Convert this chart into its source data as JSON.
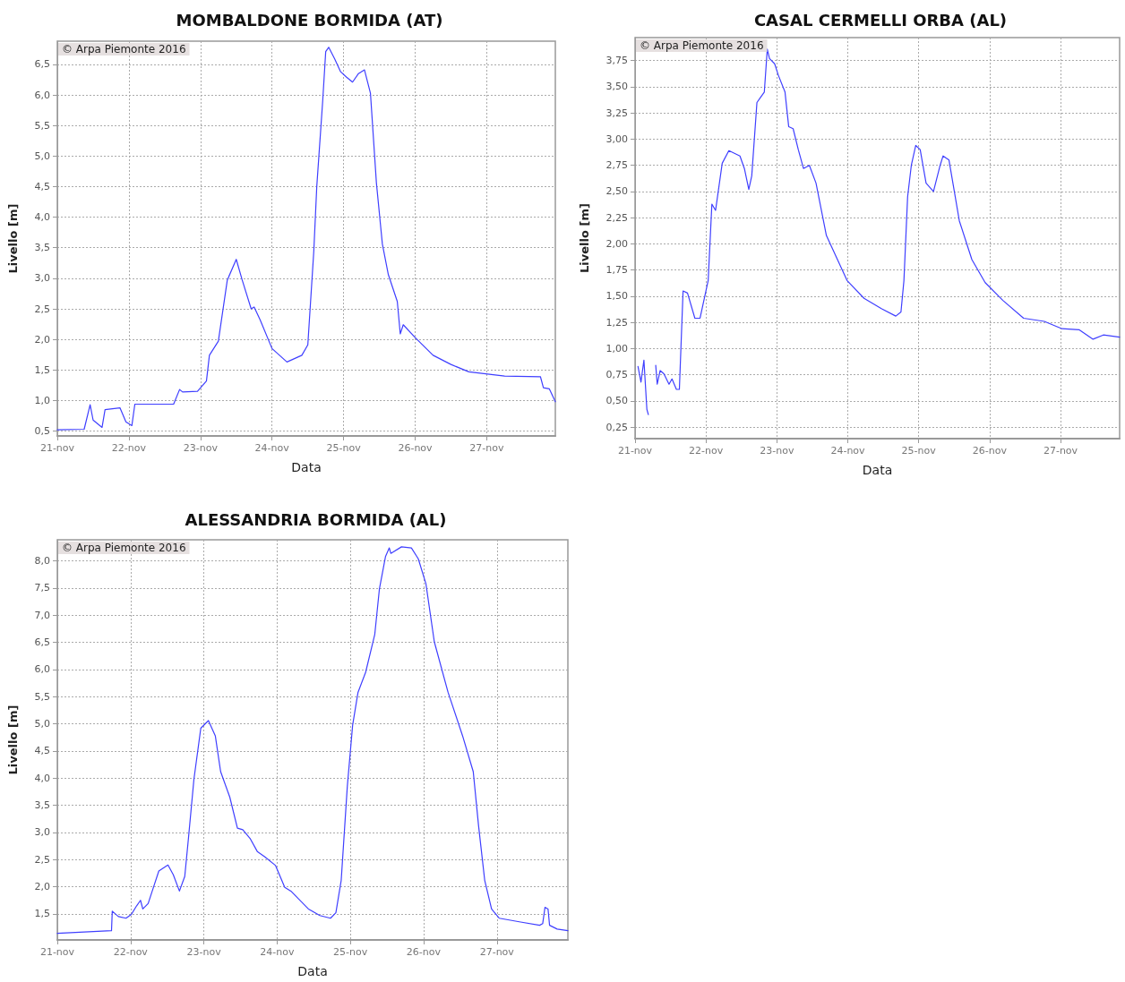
{
  "chart_data": [
    {
      "type": "line",
      "title": "MOMBALDONE BORMIDA (AT)",
      "xlabel": "Data",
      "ylabel": "Livello [m]",
      "annotations": [
        "© Arpa Piemonte 2016"
      ],
      "grid": true,
      "marker": "none",
      "line_style": "solid",
      "xlim": [
        "--11-21",
        "--11-27T23:00"
      ],
      "xticks": [
        {
          "value": "--11-21",
          "label": "21-nov"
        },
        {
          "value": "--11-22",
          "label": "22-nov"
        },
        {
          "value": "--11-23",
          "label": "23-nov"
        },
        {
          "value": "--11-24",
          "label": "24-nov"
        },
        {
          "value": "--11-25",
          "label": "25-nov"
        },
        {
          "value": "--11-26",
          "label": "26-nov"
        },
        {
          "value": "--11-27",
          "label": "27-nov"
        }
      ],
      "ylim": [
        0.42,
        6.88
      ],
      "yticks": [
        {
          "value": 0.5,
          "label": "0,5"
        },
        {
          "value": 1,
          "label": "1,0"
        },
        {
          "value": 1.5,
          "label": "1,5"
        },
        {
          "value": 2,
          "label": "2,0"
        },
        {
          "value": 2.5,
          "label": "2,5"
        },
        {
          "value": 3,
          "label": "3,0"
        },
        {
          "value": 3.5,
          "label": "3,5"
        },
        {
          "value": 4,
          "label": "4,0"
        },
        {
          "value": 4.5,
          "label": "4,5"
        },
        {
          "value": 5,
          "label": "5,0"
        },
        {
          "value": 5.5,
          "label": "5,5"
        },
        {
          "value": 6,
          "label": "6,0"
        },
        {
          "value": 6.5,
          "label": "6,5"
        }
      ],
      "series": [
        {
          "color": "#3f3fff",
          "x": [
            "--11-21T00:00",
            "--11-21T09:00",
            "--11-21T11:00",
            "--11-21T12:00",
            "--11-21T15:00",
            "--11-21T16:00",
            "--11-21T21:00",
            "--11-21T23:00",
            "--11-22T01:00",
            "--11-22T02:00",
            "--11-22T15:00",
            "--11-22T17:00",
            "--11-22T18:00",
            "--11-22T23:00",
            "--11-23T02:00",
            "--11-23T03:00",
            "--11-23T06:00",
            "--11-23T09:00",
            "--11-23T12:00",
            "--11-23T14:00",
            "--11-23T17:00",
            "--11-23T18:00",
            "--11-23T20:00",
            "--11-24T00:00",
            "--11-24T05:00",
            "--11-24T10:00",
            "--11-24T12:00",
            "--11-24T14:00",
            "--11-24T15:00",
            "--11-24T17:00",
            "--11-24T18:00",
            "--11-24T19:00",
            "--11-24T21:00",
            "--11-24T23:00",
            "--11-25T01:00",
            "--11-25T03:00",
            "--11-25T05:00",
            "--11-25T07:00",
            "--11-25T09:00",
            "--11-25T11:00",
            "--11-25T13:00",
            "--11-25T15:00",
            "--11-25T18:00",
            "--11-25T19:00",
            "--11-25T20:00",
            "--11-26T00:00",
            "--11-26T06:00",
            "--11-26T12:00",
            "--11-26T18:00",
            "--11-27T06:00",
            "--11-27T18:00",
            "--11-27T19:00",
            "--11-27T21:00",
            "--11-27T23:00"
          ],
          "values": [
            0.52,
            0.53,
            0.93,
            0.68,
            0.56,
            0.85,
            0.88,
            0.65,
            0.59,
            0.94,
            0.94,
            1.18,
            1.14,
            1.15,
            1.32,
            1.74,
            1.97,
            2.97,
            3.31,
            2.97,
            2.5,
            2.53,
            2.32,
            1.85,
            1.63,
            1.74,
            1.91,
            3.44,
            4.5,
            5.91,
            6.71,
            6.78,
            6.59,
            6.38,
            6.29,
            6.21,
            6.35,
            6.41,
            6.03,
            4.56,
            3.56,
            3.06,
            2.62,
            2.09,
            2.24,
            2.03,
            1.74,
            1.59,
            1.47,
            1.4,
            1.39,
            1.21,
            1.19,
            0.98
          ]
        }
      ]
    },
    {
      "type": "line",
      "title": "CASAL CERMELLI ORBA (AL)",
      "xlabel": "Data",
      "ylabel": "Livello [m]",
      "annotations": [
        "© Arpa Piemonte 2016"
      ],
      "grid": true,
      "marker": "none",
      "line_style": "solid",
      "xlim": [
        "--11-21",
        "--11-27T20:00"
      ],
      "xticks": [
        {
          "value": "--11-21",
          "label": "21-nov"
        },
        {
          "value": "--11-22",
          "label": "22-nov"
        },
        {
          "value": "--11-23",
          "label": "23-nov"
        },
        {
          "value": "--11-24",
          "label": "24-nov"
        },
        {
          "value": "--11-25",
          "label": "25-nov"
        },
        {
          "value": "--11-26",
          "label": "26-nov"
        },
        {
          "value": "--11-27",
          "label": "27-nov"
        }
      ],
      "ylim": [
        0.14,
        3.97
      ],
      "yticks": [
        {
          "value": 0.25,
          "label": "0,25"
        },
        {
          "value": 0.5,
          "label": "0,50"
        },
        {
          "value": 0.75,
          "label": "0,75"
        },
        {
          "value": 1,
          "label": "1,00"
        },
        {
          "value": 1.25,
          "label": "1,25"
        },
        {
          "value": 1.5,
          "label": "1,50"
        },
        {
          "value": 1.75,
          "label": "1,75"
        },
        {
          "value": 2,
          "label": "2,00"
        },
        {
          "value": 2.25,
          "label": "2,25"
        },
        {
          "value": 2.5,
          "label": "2,50"
        },
        {
          "value": 2.75,
          "label": "2,75"
        },
        {
          "value": 3,
          "label": "3,00"
        },
        {
          "value": 3.25,
          "label": "3,25"
        },
        {
          "value": 3.5,
          "label": "3,50"
        },
        {
          "value": 3.75,
          "label": "3,75"
        }
      ],
      "series": [
        {
          "color": "#3f3fff",
          "x": [
            "--11-21T01:00",
            "--11-21T02:00",
            "--11-21T03:00",
            "--11-21T04:00",
            "--11-21T04:30",
            "--11-21T05:15",
            "--11-21T07:00",
            "--11-21T07:30",
            "--11-21T08:30",
            "--11-21T09:45",
            "--11-21T11:30",
            "--11-21T12:30",
            "--11-21T14:00",
            "--11-21T15:00",
            "--11-21T16:15",
            "--11-21T17:45",
            "--11-21T20:15",
            "--11-21T22:00",
            "--11-22T00:45",
            "--11-22T02:00",
            "--11-22T03:15",
            "--11-22T05:30",
            "--11-22T07:45",
            "--11-22T11:30",
            "--11-22T13:00",
            "--11-22T14:30",
            "--11-22T15:30",
            "--11-22T17:15",
            "--11-22T18:30",
            "--11-22T19:45",
            "--11-22T20:45",
            "--11-22T21:30",
            "--11-22T23:15",
            "--11-23T00:30",
            "--11-23T02:45",
            "--11-23T04:00",
            "--11-23T05:30",
            "--11-23T07:15",
            "--11-23T09:00",
            "--11-23T11:00",
            "--11-23T13:15",
            "--11-23T16:45",
            "--11-23T23:45",
            "--11-24T05:30",
            "--11-24T11:30",
            "--11-24T16:15",
            "--11-24T18:00",
            "--11-24T19:00",
            "--11-24T20:15",
            "--11-24T21:30",
            "--11-24T23:00",
            "--11-25T00:30",
            "--11-25T02:30",
            "--11-25T05:00",
            "--11-25T07:15",
            "--11-25T08:15",
            "--11-25T10:15",
            "--11-25T13:45",
            "--11-25T18:00",
            "--11-25T22:30",
            "--11-26T04:30",
            "--11-26T11:30",
            "--11-26T18:30",
            "--11-27T00:30",
            "--11-27T06:15",
            "--11-27T11:00",
            "--11-27T14:30",
            "--11-27T20:00"
          ],
          "values": [
            0.83,
            0.68,
            0.89,
            0.42,
            0.37,
            null,
            0.84,
            0.66,
            0.79,
            0.76,
            0.66,
            0.71,
            0.61,
            0.61,
            1.55,
            1.53,
            1.29,
            1.29,
            1.65,
            2.38,
            2.32,
            2.77,
            2.89,
            2.84,
            2.72,
            2.52,
            2.65,
            3.35,
            3.4,
            3.45,
            3.86,
            3.77,
            3.72,
            3.61,
            3.45,
            3.12,
            3.1,
            2.9,
            2.72,
            2.75,
            2.58,
            2.08,
            1.65,
            1.48,
            1.38,
            1.31,
            1.35,
            1.65,
            2.45,
            2.75,
            2.94,
            2.9,
            2.58,
            2.5,
            2.75,
            2.84,
            2.8,
            2.22,
            1.85,
            1.63,
            1.46,
            1.29,
            1.26,
            1.19,
            1.18,
            1.09,
            1.13,
            1.11
          ]
        }
      ]
    },
    {
      "type": "line",
      "title": "ALESSANDRIA BORMIDA (AL)",
      "xlabel": "Data",
      "ylabel": "Livello [m]",
      "annotations": [
        "© Arpa Piemonte 2016"
      ],
      "grid": true,
      "marker": "none",
      "line_style": "solid",
      "xlim": [
        "--11-21",
        "--11-27T23:15"
      ],
      "xticks": [
        {
          "value": "--11-21",
          "label": "21-nov"
        },
        {
          "value": "--11-22",
          "label": "22-nov"
        },
        {
          "value": "--11-23",
          "label": "23-nov"
        },
        {
          "value": "--11-24",
          "label": "24-nov"
        },
        {
          "value": "--11-25",
          "label": "25-nov"
        },
        {
          "value": "--11-26",
          "label": "26-nov"
        },
        {
          "value": "--11-27",
          "label": "27-nov"
        }
      ],
      "ylim": [
        1.02,
        8.39
      ],
      "yticks": [
        {
          "value": 1.5,
          "label": "1,5"
        },
        {
          "value": 2,
          "label": "2,0"
        },
        {
          "value": 2.5,
          "label": "2,5"
        },
        {
          "value": 3,
          "label": "3,0"
        },
        {
          "value": 3.5,
          "label": "3,5"
        },
        {
          "value": 4,
          "label": "4,0"
        },
        {
          "value": 4.5,
          "label": "4,5"
        },
        {
          "value": 5,
          "label": "5,0"
        },
        {
          "value": 5.5,
          "label": "5,5"
        },
        {
          "value": 6,
          "label": "6,0"
        },
        {
          "value": 6.5,
          "label": "6,5"
        },
        {
          "value": 7,
          "label": "7,0"
        },
        {
          "value": 7.5,
          "label": "7,5"
        },
        {
          "value": 8,
          "label": "8,0"
        }
      ],
      "series": [
        {
          "color": "#3f3fff",
          "x": [
            "--11-21T00:00",
            "--11-21T17:45",
            "--11-21T18:00",
            "--11-21T20:00",
            "--11-21T22:30",
            "--11-22T00:15",
            "--11-22T02:00",
            "--11-22T03:15",
            "--11-22T04:00",
            "--11-22T05:45",
            "--11-22T07:30",
            "--11-22T09:15",
            "--11-22T12:15",
            "--11-22T14:00",
            "--11-22T16:00",
            "--11-22T17:45",
            "--11-22T19:00",
            "--11-22T20:45",
            "--11-22T23:00",
            "--11-23T01:30",
            "--11-23T03:45",
            "--11-23T05:30",
            "--11-23T08:30",
            "--11-23T11:00",
            "--11-23T12:45",
            "--11-23T15:15",
            "--11-23T17:30",
            "--11-23T20:00",
            "--11-23T23:30",
            "--11-24T02:30",
            "--11-24T04:30",
            "--11-24T10:15",
            "--11-24T14:00",
            "--11-24T17:30",
            "--11-24T19:15",
            "--11-24T21:00",
            "--11-24T23:00",
            "--11-25T00:45",
            "--11-25T02:30",
            "--11-25T05:00",
            "--11-25T08:00",
            "--11-25T09:30",
            "--11-25T11:30",
            "--11-25T12:45",
            "--11-25T13:15",
            "--11-25T16:45",
            "--11-25T20:00",
            "--11-25T22:15",
            "--11-26T00:45",
            "--11-26T03:30",
            "--11-26T08:00",
            "--11-26T12:45",
            "--11-26T16:15",
            "--11-26T18:00",
            "--11-26T20:00",
            "--11-26T22:15",
            "--11-27T00:45",
            "--11-27T07:45",
            "--11-27T14:00",
            "--11-27T15:00",
            "--11-27T15:45",
            "--11-27T16:45",
            "--11-27T17:15",
            "--11-27T19:45",
            "--11-27T23:15"
          ],
          "values": [
            1.14,
            1.19,
            1.55,
            1.45,
            1.42,
            1.49,
            1.65,
            1.75,
            1.59,
            1.69,
            1.99,
            2.29,
            2.4,
            2.22,
            1.92,
            2.19,
            2.92,
            3.98,
            4.92,
            5.06,
            4.78,
            4.12,
            3.65,
            3.08,
            3.05,
            2.88,
            2.65,
            2.55,
            2.39,
            1.99,
            1.92,
            1.59,
            1.47,
            1.42,
            1.52,
            2.12,
            3.85,
            4.98,
            5.58,
            5.95,
            6.65,
            7.48,
            8.08,
            8.24,
            8.14,
            8.26,
            8.24,
            8.04,
            7.58,
            6.51,
            5.58,
            4.78,
            4.12,
            3.12,
            2.12,
            1.59,
            1.42,
            1.35,
            1.29,
            1.32,
            1.62,
            1.59,
            1.29,
            1.22,
            1.19
          ]
        }
      ]
    }
  ]
}
